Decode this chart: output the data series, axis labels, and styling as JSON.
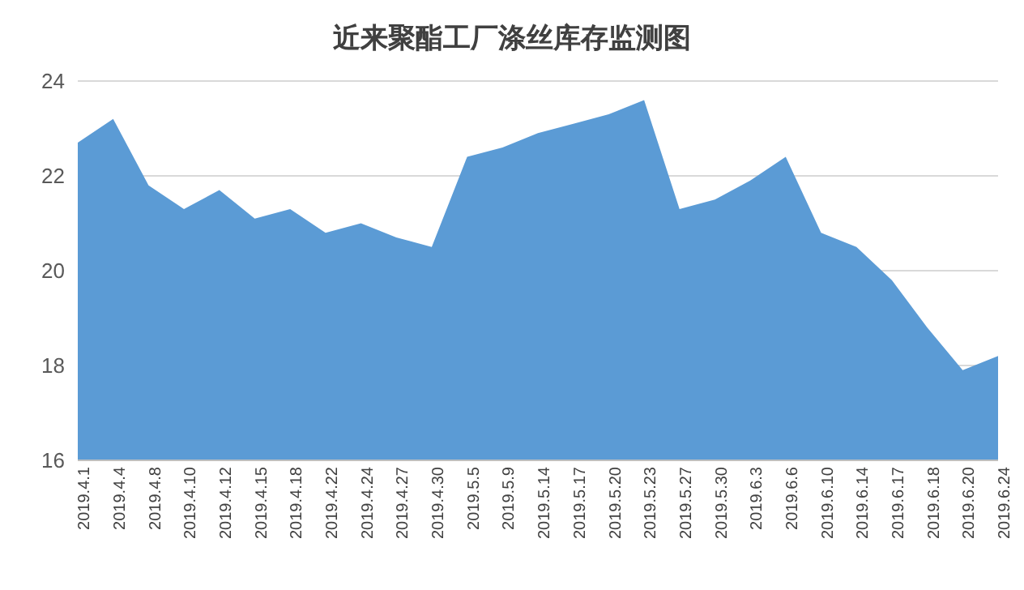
{
  "chart_data": {
    "type": "area",
    "title": "近来聚酯工厂涤丝库存监测图",
    "categories": [
      "2019.4.1",
      "2019.4.4",
      "2019.4.8",
      "2019.4.10",
      "2019.4.12",
      "2019.4.15",
      "2019.4.18",
      "2019.4.22",
      "2019.4.24",
      "2019.4.27",
      "2019.4.30",
      "2019.5.5",
      "2019.5.9",
      "2019.5.14",
      "2019.5.17",
      "2019.5.20",
      "2019.5.23",
      "2019.5.27",
      "2019.5.30",
      "2019.6.3",
      "2019.6.6",
      "2019.6.10",
      "2019.6.14",
      "2019.6.17",
      "2019.6.18",
      "2019.6.20",
      "2019.6.24"
    ],
    "series": [
      {
        "color": "#5b9bd5",
        "values": [
          22.7,
          23.2,
          21.8,
          21.3,
          21.7,
          21.1,
          21.3,
          20.8,
          21.0,
          20.7,
          20.5,
          22.4,
          22.6,
          22.9,
          23.1,
          23.3,
          23.6,
          21.3,
          21.5,
          21.9,
          22.4,
          20.8,
          20.5,
          19.8,
          18.8,
          17.9,
          18.2
        ]
      }
    ],
    "ylim": [
      16,
      24
    ],
    "yticks": [
      16,
      18,
      20,
      22,
      24
    ],
    "grid": "y",
    "legend": false
  }
}
